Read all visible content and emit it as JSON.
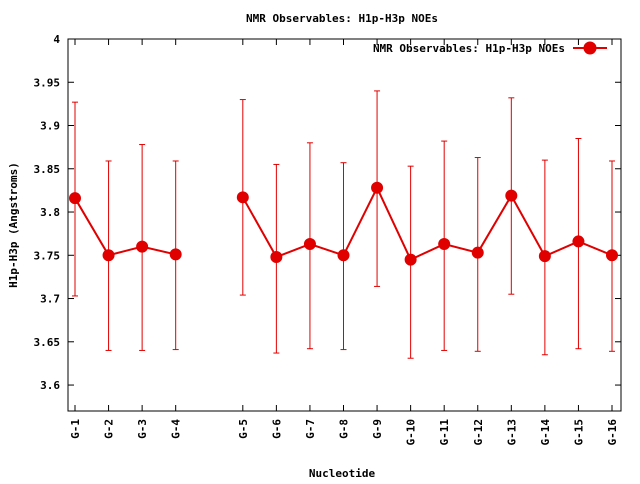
{
  "chart_data": {
    "type": "line",
    "title": "NMR Observables: H1p-H3p NOEs",
    "xlabel": "Nucleotide",
    "ylabel": "H1p-H3p (Angstroms)",
    "ylim": [
      3.57,
      4.0
    ],
    "yticks": [
      3.6,
      3.65,
      3.7,
      3.75,
      3.8,
      3.85,
      3.9,
      3.95,
      4
    ],
    "ytick_labels": [
      "3.6",
      "3.65",
      "3.7",
      "3.75",
      "3.8",
      "3.85",
      "3.9",
      "3.95",
      "4"
    ],
    "grid": false,
    "legend_position": "top-right",
    "categories": [
      "G-1",
      "G-2",
      "G-3",
      "G-4",
      "G-5",
      "G-6",
      "G-7",
      "G-8",
      "G-9",
      "G-10",
      "G-11",
      "G-12",
      "G-13",
      "G-14",
      "G-15",
      "G-16"
    ],
    "series": [
      {
        "name": "NMR Observables: H1p-H3p NOEs",
        "color": "#e00000",
        "segments": [
          [
            0,
            3
          ],
          [
            4,
            15
          ]
        ],
        "values": [
          3.816,
          3.75,
          3.76,
          3.751,
          3.817,
          3.748,
          3.763,
          3.75,
          3.828,
          3.745,
          3.763,
          3.753,
          3.819,
          3.749,
          3.766,
          3.75
        ],
        "err_low": [
          3.703,
          3.64,
          3.64,
          3.641,
          3.704,
          3.637,
          3.642,
          3.641,
          3.714,
          3.631,
          3.64,
          3.639,
          3.705,
          3.635,
          3.642,
          3.639
        ],
        "err_high": [
          3.927,
          3.859,
          3.878,
          3.859,
          3.93,
          3.855,
          3.88,
          3.857,
          3.94,
          3.853,
          3.882,
          3.863,
          3.932,
          3.86,
          3.885,
          3.859
        ]
      }
    ]
  }
}
